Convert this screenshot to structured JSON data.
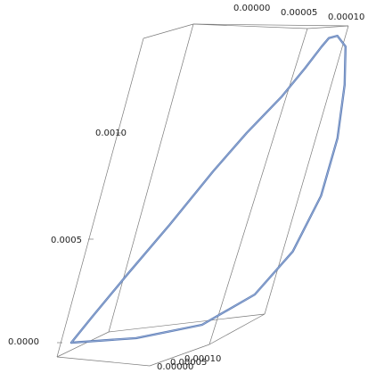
{
  "chart_data": {
    "type": "line",
    "dimensions": 3,
    "z_ticks": [
      "0.0000",
      "0.0005",
      "0.0010"
    ],
    "top_ticks": [
      "0.00000",
      "0.00005",
      "0.00010"
    ],
    "bottom_ticks": [
      "0.00000",
      "0.00005",
      "0.00010"
    ],
    "series": [
      {
        "color": "#5f7fb8",
        "points": [
          [
            0.0,
            0.0,
            0.0
          ],
          [
            0.002,
            0.004,
            0.00012
          ],
          [
            0.006,
            0.01,
            0.00032
          ],
          [
            0.011,
            0.017,
            0.00055
          ],
          [
            0.016,
            0.024,
            0.0008
          ],
          [
            0.02,
            0.03,
            0.00098
          ],
          [
            0.025,
            0.036,
            0.00115
          ],
          [
            0.028,
            0.039,
            0.00128
          ],
          [
            0.03,
            0.041,
            0.00138
          ],
          [
            0.031,
            0.042,
            0.00142
          ],
          [
            0.033,
            0.044,
            0.00143
          ],
          [
            0.036,
            0.048,
            0.00138
          ],
          [
            0.04,
            0.052,
            0.0012
          ],
          [
            0.044,
            0.056,
            0.00095
          ],
          [
            0.046,
            0.058,
            0.00068
          ],
          [
            0.045,
            0.056,
            0.00042
          ],
          [
            0.04,
            0.05,
            0.00022
          ],
          [
            0.03,
            0.038,
            8e-05
          ],
          [
            0.015,
            0.02,
            2e-05
          ],
          [
            0.0,
            0.0,
            0.0
          ]
        ]
      }
    ]
  }
}
